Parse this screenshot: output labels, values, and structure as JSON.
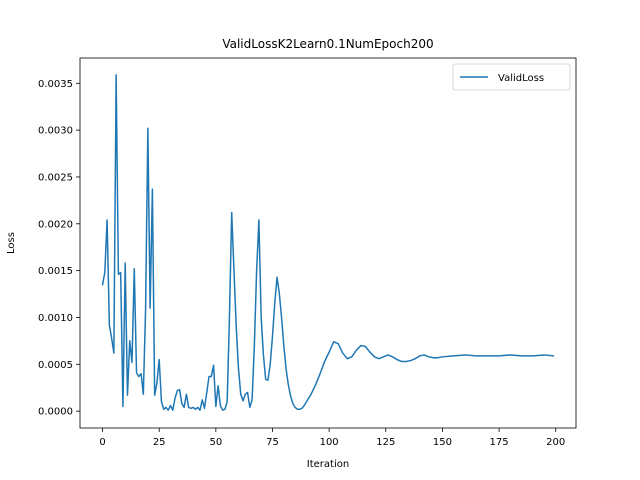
{
  "chart_data": {
    "type": "line",
    "title": "ValidLossK2Learn0.1NumEpoch200",
    "xlabel": "Iteration",
    "ylabel": "Loss",
    "xlim": [
      -9.95,
      208.95
    ],
    "ylim": [
      -0.00018,
      0.00377
    ],
    "xticks": [
      0,
      25,
      50,
      75,
      100,
      125,
      150,
      175,
      200
    ],
    "xtick_labels": [
      "0",
      "25",
      "50",
      "75",
      "100",
      "125",
      "150",
      "175",
      "200"
    ],
    "yticks": [
      0.0,
      0.0005,
      0.001,
      0.0015,
      0.002,
      0.0025,
      0.003,
      0.0035
    ],
    "ytick_labels": [
      "0.0000",
      "0.0005",
      "0.0010",
      "0.0015",
      "0.0020",
      "0.0025",
      "0.0030",
      "0.0035"
    ],
    "grid": false,
    "legend": "upper-right",
    "colors": {
      "series": "#1f77b4",
      "axes": "#000000",
      "background": "#ffffff"
    },
    "series": [
      {
        "name": "ValidLoss",
        "x": [
          0,
          1,
          2,
          3,
          4,
          5,
          6,
          7,
          8,
          9,
          10,
          11,
          12,
          13,
          14,
          15,
          16,
          17,
          18,
          19,
          20,
          21,
          22,
          23,
          24,
          25,
          26,
          27,
          28,
          29,
          30,
          31,
          32,
          33,
          34,
          35,
          36,
          37,
          38,
          39,
          40,
          41,
          42,
          43,
          44,
          45,
          46,
          47,
          48,
          49,
          50,
          51,
          52,
          53,
          54,
          55,
          56,
          57,
          58,
          59,
          60,
          61,
          62,
          63,
          64,
          65,
          66,
          67,
          68,
          69,
          70,
          71,
          72,
          73,
          74,
          75,
          76,
          77,
          78,
          79,
          80,
          81,
          82,
          83,
          84,
          85,
          86,
          87,
          88,
          89,
          90,
          92,
          94,
          96,
          98,
          100,
          102,
          104,
          106,
          108,
          110,
          112,
          114,
          116,
          118,
          120,
          122,
          124,
          126,
          128,
          130,
          132,
          134,
          136,
          138,
          140,
          142,
          144,
          146,
          148,
          150,
          155,
          160,
          165,
          170,
          175,
          180,
          185,
          190,
          195,
          199
        ],
        "values": [
          0.00135,
          0.00148,
          0.00204,
          0.00092,
          0.00078,
          0.00062,
          0.00359,
          0.00146,
          0.00148,
          5e-05,
          0.00158,
          0.00017,
          0.00075,
          0.00052,
          0.00152,
          0.00041,
          0.00037,
          0.0004,
          0.00018,
          0.0011,
          0.00302,
          0.0011,
          0.00237,
          0.00017,
          0.0003,
          0.00055,
          0.0001,
          2e-05,
          4e-05,
          1e-05,
          6e-05,
          1e-05,
          0.00014,
          0.00022,
          0.00023,
          8e-05,
          4e-05,
          0.00018,
          4e-05,
          3e-05,
          4e-05,
          2e-05,
          4e-05,
          1e-05,
          0.00012,
          3e-05,
          0.0002,
          0.00037,
          0.00037,
          0.00049,
          5e-05,
          0.00027,
          6e-05,
          1e-05,
          2e-05,
          0.0001,
          0.001,
          0.00212,
          0.0015,
          0.0009,
          0.00045,
          0.00018,
          0.00011,
          0.00018,
          0.0002,
          4e-05,
          0.00012,
          0.0007,
          0.0015,
          0.00204,
          0.001,
          0.0006,
          0.00034,
          0.00033,
          0.0005,
          0.0008,
          0.00115,
          0.00143,
          0.00126,
          0.001,
          0.0007,
          0.00045,
          0.00028,
          0.00016,
          8e-05,
          4e-05,
          2e-05,
          2e-05,
          3e-05,
          6e-05,
          0.0001,
          0.00018,
          0.00028,
          0.0004,
          0.00053,
          0.00063,
          0.00074,
          0.00072,
          0.00062,
          0.00056,
          0.00058,
          0.00065,
          0.0007,
          0.00069,
          0.00063,
          0.00058,
          0.00056,
          0.00058,
          0.0006,
          0.00058,
          0.00055,
          0.00053,
          0.00053,
          0.00054,
          0.00056,
          0.00059,
          0.0006,
          0.00058,
          0.00057,
          0.00057,
          0.00058,
          0.00059,
          0.0006,
          0.00059,
          0.00059,
          0.00059,
          0.0006,
          0.00059,
          0.00059,
          0.0006,
          0.00059
        ]
      }
    ]
  }
}
